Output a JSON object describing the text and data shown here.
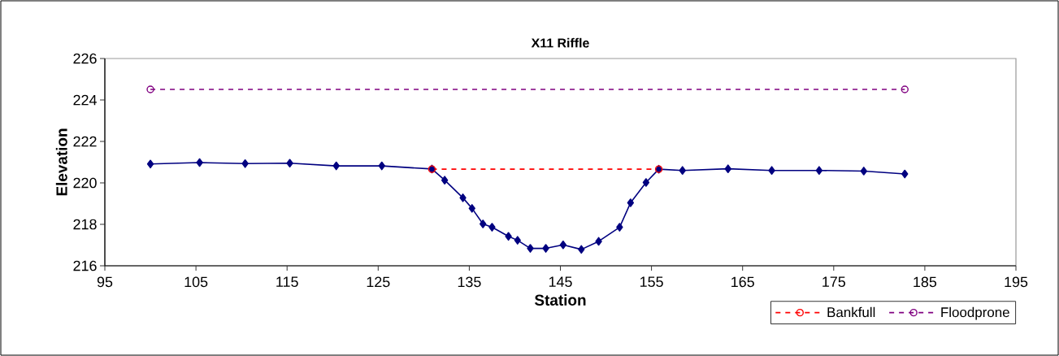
{
  "chart_data": {
    "type": "line",
    "title": "X11 Riffle",
    "xlabel": "Station",
    "ylabel": "Elevation",
    "xlim": [
      95,
      195
    ],
    "xticks": [
      95,
      105,
      115,
      125,
      135,
      145,
      155,
      165,
      175,
      185,
      195
    ],
    "ylim": [
      216,
      226
    ],
    "yticks": [
      216,
      218,
      220,
      222,
      224,
      226
    ],
    "grid": false,
    "legend": "bottom right",
    "series": [
      {
        "color": "#000080",
        "marker": "diamond",
        "line_style": "solid",
        "x": [
          100.0,
          105.4,
          110.4,
          115.3,
          120.4,
          125.4,
          130.9,
          132.3,
          134.3,
          135.3,
          136.5,
          137.5,
          139.3,
          140.3,
          141.7,
          143.4,
          145.3,
          147.3,
          149.2,
          151.5,
          152.7,
          154.4,
          155.8,
          158.4,
          163.4,
          168.2,
          173.4,
          178.3,
          182.8
        ],
        "values": [
          220.91,
          220.98,
          220.93,
          220.95,
          220.82,
          220.82,
          220.67,
          220.13,
          219.28,
          218.77,
          218.02,
          217.86,
          217.42,
          217.23,
          216.84,
          216.84,
          217.01,
          216.79,
          217.18,
          217.86,
          219.04,
          220.02,
          220.66,
          220.6,
          220.68,
          220.6,
          220.6,
          220.57,
          220.43
        ]
      },
      {
        "name": "Bankfull",
        "color": "#ff0000",
        "marker": "circle",
        "line_style": "dashed",
        "x": [
          130.9,
          155.8
        ],
        "values": [
          220.66,
          220.66
        ]
      },
      {
        "name": "Floodprone",
        "color": "#800080",
        "marker": "circle",
        "line_style": "dashed",
        "x": [
          100.0,
          182.8
        ],
        "values": [
          224.51,
          224.51
        ]
      }
    ]
  }
}
